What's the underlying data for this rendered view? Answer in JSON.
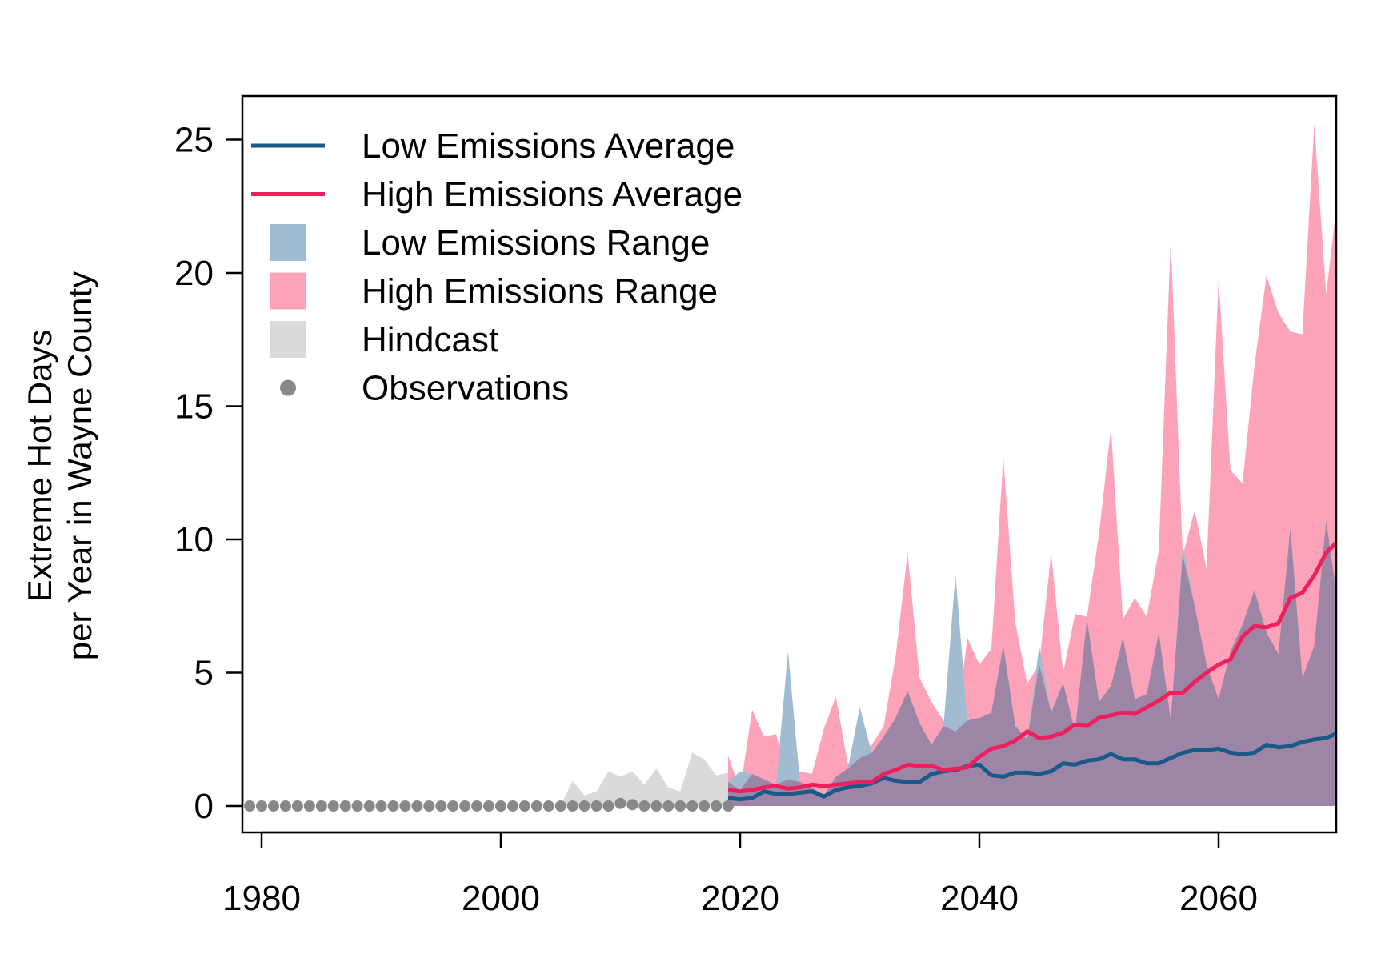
{
  "chart_data": {
    "type": "area",
    "ylabel_lines": [
      "Extreme Hot Days",
      "per Year in Wayne County"
    ],
    "xlim": [
      1978,
      2070
    ],
    "ylim": [
      -1,
      26.7
    ],
    "x_ticks": [
      1980,
      2000,
      2020,
      2040,
      2060
    ],
    "y_ticks": [
      0,
      5,
      10,
      15,
      20,
      25
    ],
    "legend": {
      "position": "top-left",
      "entries": [
        {
          "label": "Low Emissions Average",
          "kind": "line",
          "color": "#1a5a8a"
        },
        {
          "label": "High Emissions Average",
          "kind": "line",
          "color": "#ef1f5e"
        },
        {
          "label": "Low Emissions Range",
          "kind": "box",
          "color": "#a1bcd1"
        },
        {
          "label": "High Emissions Range",
          "kind": "box",
          "color": "#fda3b9"
        },
        {
          "label": "Hindcast",
          "kind": "box",
          "color": "#dadada"
        },
        {
          "label": "Observations",
          "kind": "point",
          "color": "#888888"
        }
      ]
    },
    "colors": {
      "low_avg": "#1a5a8a",
      "high_avg": "#ef1f5e",
      "low_range": "#a1bcd1",
      "high_range": "#fda3b9",
      "overlap": "#9d85a5",
      "hindcast": "#dadada",
      "observations": "#888888"
    },
    "observations": {
      "x": [
        1979,
        1980,
        1981,
        1982,
        1983,
        1984,
        1985,
        1986,
        1987,
        1988,
        1989,
        1990,
        1991,
        1992,
        1993,
        1994,
        1995,
        1996,
        1997,
        1998,
        1999,
        2000,
        2001,
        2002,
        2003,
        2004,
        2005,
        2006,
        2007,
        2008,
        2009,
        2010,
        2011,
        2012,
        2013,
        2014,
        2015,
        2016,
        2017,
        2018,
        2019
      ],
      "y": [
        0,
        0,
        0,
        0,
        0,
        0,
        0,
        0,
        0,
        0,
        0,
        0,
        0,
        0,
        0,
        0,
        0,
        0,
        0,
        0,
        0,
        0,
        0,
        0,
        0,
        0,
        0,
        0,
        0,
        0,
        0,
        0.1,
        0.05,
        0,
        0,
        0,
        0,
        0,
        0,
        0,
        0
      ]
    },
    "hindcast": {
      "x": [
        2005,
        2006,
        2007,
        2008,
        2009,
        2010,
        2011,
        2012,
        2013,
        2014,
        2015,
        2016,
        2017,
        2018,
        2019
      ],
      "max": [
        0,
        0.95,
        0.4,
        0.55,
        1.3,
        1.1,
        1.3,
        0.8,
        1.4,
        0.7,
        0.55,
        2.0,
        1.75,
        1.15,
        1.25
      ]
    },
    "high_range": {
      "x": [
        2019,
        2020,
        2021,
        2022,
        2023,
        2024,
        2025,
        2026,
        2027,
        2028,
        2029,
        2030,
        2031,
        2032,
        2033,
        2034,
        2035,
        2036,
        2037,
        2038,
        2039,
        2040,
        2041,
        2042,
        2043,
        2044,
        2045,
        2046,
        2047,
        2048,
        2049,
        2050,
        2051,
        2052,
        2053,
        2054,
        2055,
        2056,
        2057,
        2058,
        2059,
        2060,
        2061,
        2062,
        2063,
        2064,
        2065,
        2066,
        2067,
        2068,
        2069,
        2070
      ],
      "max": [
        1.9,
        0.6,
        3.6,
        2.6,
        2.7,
        1.0,
        1.3,
        1.2,
        2.9,
        4.1,
        1.6,
        1.8,
        2.3,
        3.0,
        5.6,
        9.5,
        4.8,
        3.9,
        3.2,
        2.8,
        6.3,
        5.3,
        5.9,
        13.1,
        6.9,
        4.6,
        5.3,
        9.5,
        5.0,
        7.2,
        7.1,
        10.2,
        14.2,
        7.0,
        7.8,
        7.1,
        9.6,
        21.3,
        9.4,
        11.1,
        8.9,
        19.8,
        12.6,
        12.1,
        16.5,
        19.9,
        18.5,
        17.8,
        17.7,
        25.6,
        19.2,
        23.1
      ]
    },
    "low_range": {
      "x": [
        2019,
        2020,
        2021,
        2022,
        2023,
        2024,
        2025,
        2026,
        2027,
        2028,
        2029,
        2030,
        2031,
        2032,
        2033,
        2034,
        2035,
        2036,
        2037,
        2038,
        2039,
        2040,
        2041,
        2042,
        2043,
        2044,
        2045,
        2046,
        2047,
        2048,
        2049,
        2050,
        2051,
        2052,
        2053,
        2054,
        2055,
        2056,
        2057,
        2058,
        2059,
        2060,
        2061,
        2062,
        2063,
        2064,
        2065,
        2066,
        2067,
        2068,
        2069,
        2070
      ],
      "max": [
        0.9,
        1.3,
        1.2,
        1.0,
        0.8,
        5.8,
        0.9,
        0.7,
        0.4,
        1.1,
        1.4,
        3.7,
        2.0,
        2.6,
        3.3,
        4.3,
        3.1,
        2.3,
        3.0,
        8.7,
        3.2,
        3.3,
        3.5,
        6.0,
        3.0,
        2.5,
        6.0,
        3.5,
        4.6,
        2.8,
        7.0,
        3.9,
        4.5,
        6.3,
        4.0,
        4.2,
        6.5,
        3.2,
        9.8,
        7.5,
        5.3,
        4.0,
        5.8,
        6.8,
        8.1,
        6.5,
        5.7,
        10.4,
        4.8,
        6.0,
        10.7,
        7.5
      ]
    },
    "low_avg": {
      "x": [
        2019,
        2020,
        2021,
        2022,
        2023,
        2024,
        2025,
        2026,
        2027,
        2028,
        2029,
        2030,
        2031,
        2032,
        2033,
        2034,
        2035,
        2036,
        2037,
        2038,
        2039,
        2040,
        2041,
        2042,
        2043,
        2044,
        2045,
        2046,
        2047,
        2048,
        2049,
        2050,
        2051,
        2052,
        2053,
        2054,
        2055,
        2056,
        2057,
        2058,
        2059,
        2060,
        2061,
        2062,
        2063,
        2064,
        2065,
        2066,
        2067,
        2068,
        2069,
        2070
      ],
      "y": [
        0.3,
        0.25,
        0.3,
        0.55,
        0.45,
        0.45,
        0.5,
        0.55,
        0.35,
        0.6,
        0.7,
        0.75,
        0.85,
        1.05,
        0.95,
        0.9,
        0.9,
        1.2,
        1.3,
        1.35,
        1.5,
        1.55,
        1.15,
        1.1,
        1.25,
        1.25,
        1.2,
        1.3,
        1.6,
        1.55,
        1.7,
        1.75,
        1.95,
        1.75,
        1.75,
        1.6,
        1.6,
        1.8,
        2.0,
        2.1,
        2.1,
        2.15,
        2.0,
        1.95,
        2.0,
        2.3,
        2.2,
        2.25,
        2.4,
        2.5,
        2.55,
        2.75
      ]
    },
    "high_avg": {
      "x": [
        2019,
        2020,
        2021,
        2022,
        2023,
        2024,
        2025,
        2026,
        2027,
        2028,
        2029,
        2030,
        2031,
        2032,
        2033,
        2034,
        2035,
        2036,
        2037,
        2038,
        2039,
        2040,
        2041,
        2042,
        2043,
        2044,
        2045,
        2046,
        2047,
        2048,
        2049,
        2050,
        2051,
        2052,
        2053,
        2054,
        2055,
        2056,
        2057,
        2058,
        2059,
        2060,
        2061,
        2062,
        2063,
        2064,
        2065,
        2066,
        2067,
        2068,
        2069,
        2070
      ],
      "y": [
        0.6,
        0.55,
        0.6,
        0.7,
        0.75,
        0.65,
        0.7,
        0.8,
        0.75,
        0.8,
        0.85,
        0.9,
        0.9,
        1.2,
        1.35,
        1.55,
        1.5,
        1.5,
        1.35,
        1.4,
        1.45,
        1.85,
        2.15,
        2.25,
        2.45,
        2.8,
        2.55,
        2.6,
        2.75,
        3.05,
        3.0,
        3.3,
        3.4,
        3.5,
        3.45,
        3.7,
        3.95,
        4.25,
        4.25,
        4.65,
        5.0,
        5.3,
        5.5,
        6.35,
        6.75,
        6.7,
        6.85,
        7.8,
        8.0,
        8.65,
        9.5,
        9.95
      ]
    }
  }
}
